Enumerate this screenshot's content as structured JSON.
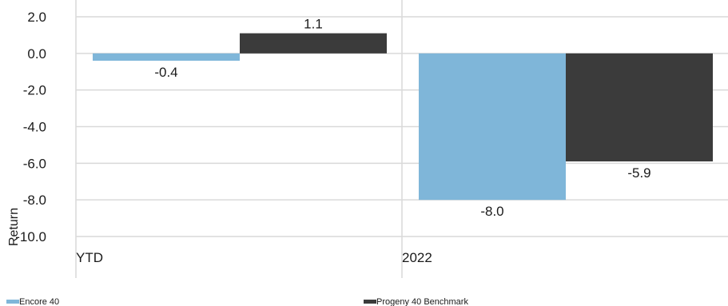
{
  "chart_data": {
    "type": "bar",
    "title": "",
    "xlabel": "",
    "ylabel": "Return",
    "categories": [
      "YTD",
      "2022"
    ],
    "series": [
      {
        "name": "Encore 40",
        "values": [
          -0.4,
          -8.0
        ],
        "color": "#7fb6d9"
      },
      {
        "name": "Progeny 40 Benchmark",
        "values": [
          1.1,
          -5.9
        ],
        "color": "#3b3b3b"
      }
    ],
    "data_labels": [
      [
        "-0.4",
        "-8.0"
      ],
      [
        "1.1",
        "-5.9"
      ]
    ],
    "ylim": [
      -10.0,
      2.0
    ],
    "yticks": [
      2.0,
      0.0,
      -2.0,
      -4.0,
      -6.0,
      -8.0,
      -10.0
    ],
    "ytick_labels": [
      "2.0",
      "0.0",
      "-2.0",
      "-4.0",
      "-6.0",
      "-8.0",
      "-10.0"
    ],
    "grid": true,
    "legend_position": "bottom"
  }
}
